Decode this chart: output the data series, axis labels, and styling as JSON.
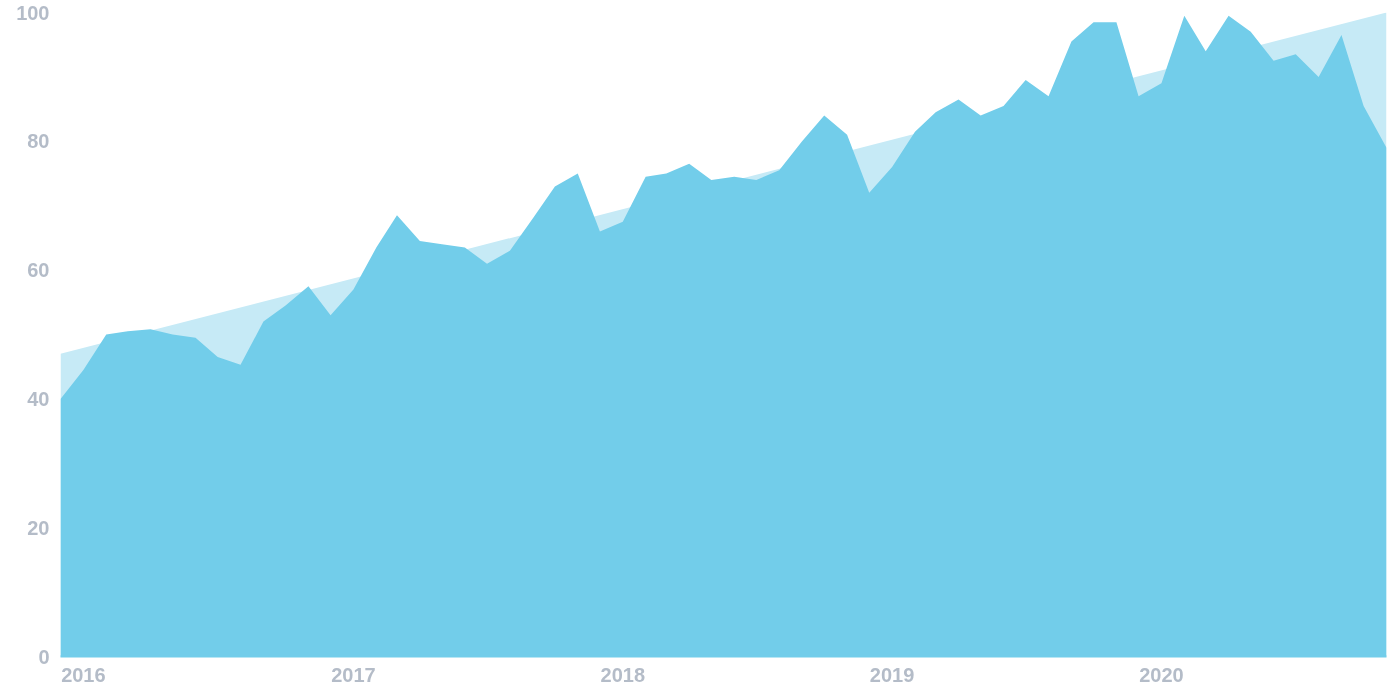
{
  "chart_data": {
    "type": "area",
    "x": [
      "2015-12",
      "2016-01",
      "2016-02",
      "2016-03",
      "2016-04",
      "2016-05",
      "2016-06",
      "2016-07",
      "2016-08",
      "2016-09",
      "2016-10",
      "2016-11",
      "2016-12",
      "2017-01",
      "2017-02",
      "2017-03",
      "2017-04",
      "2017-05",
      "2017-06",
      "2017-07",
      "2017-08",
      "2017-09",
      "2017-10",
      "2017-11",
      "2017-12",
      "2018-01",
      "2018-02",
      "2018-03",
      "2018-04",
      "2018-05",
      "2018-06",
      "2018-07",
      "2018-08",
      "2018-09",
      "2018-10",
      "2018-11",
      "2018-12",
      "2019-01",
      "2019-02",
      "2019-03",
      "2019-04",
      "2019-05",
      "2019-06",
      "2019-07",
      "2019-08",
      "2019-09",
      "2019-10",
      "2019-11",
      "2019-12",
      "2020-01",
      "2020-02",
      "2020-03",
      "2020-04",
      "2020-05",
      "2020-06",
      "2020-07",
      "2020-08",
      "2020-09",
      "2020-10",
      "2020-11"
    ],
    "series": [
      {
        "color": "#c6eaf6",
        "x": [
          "2015-12",
          "2020-11"
        ],
        "values": [
          47,
          100
        ]
      },
      {
        "color": "#72cdea",
        "values": [
          40,
          44.5,
          50,
          50.5,
          50.8,
          50,
          49.5,
          46.5,
          45.3,
          52,
          54.5,
          57.5,
          53,
          57,
          63.5,
          68.5,
          64.5,
          64,
          63.5,
          61,
          63,
          68,
          73,
          75,
          66,
          67.5,
          74.5,
          75,
          76.5,
          74,
          74.5,
          74,
          75.5,
          80,
          84,
          81,
          72,
          76,
          81.5,
          84.5,
          86.5,
          84,
          85.5,
          89.5,
          87,
          95.5,
          98.5,
          98.5,
          87,
          89,
          99.5,
          94,
          99.5,
          97,
          92.5,
          93.5,
          90,
          96.5,
          85.5,
          79
        ]
      }
    ],
    "xlim": [
      "2015-12",
      "2020-11"
    ],
    "xticks": [
      "2016",
      "2017",
      "2018",
      "2019",
      "2020"
    ],
    "ylim": [
      0,
      100
    ],
    "yticks": [
      0,
      20,
      40,
      60,
      80,
      100
    ],
    "grid": false
  }
}
